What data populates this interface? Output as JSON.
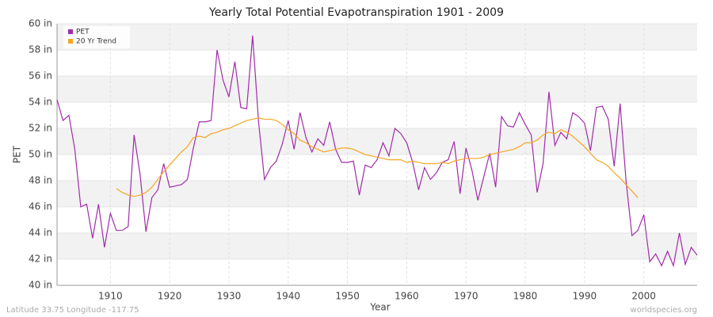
{
  "chart_data": {
    "type": "line",
    "title": "Yearly Total Potential Evapotranspiration 1901 - 2009",
    "xlabel": "Year",
    "ylabel": "PET",
    "footer_left": "Latitude 33.75 Longitude -117.75",
    "footer_right": "worldspecies.org",
    "x": [
      1901,
      1902,
      1903,
      1904,
      1905,
      1906,
      1907,
      1908,
      1909,
      1910,
      1911,
      1912,
      1913,
      1914,
      1915,
      1916,
      1917,
      1918,
      1919,
      1920,
      1921,
      1922,
      1923,
      1924,
      1925,
      1926,
      1927,
      1928,
      1929,
      1930,
      1931,
      1932,
      1933,
      1934,
      1935,
      1936,
      1937,
      1938,
      1939,
      1940,
      1941,
      1942,
      1943,
      1944,
      1945,
      1946,
      1947,
      1948,
      1949,
      1950,
      1951,
      1952,
      1953,
      1954,
      1955,
      1956,
      1957,
      1958,
      1959,
      1960,
      1961,
      1962,
      1963,
      1964,
      1965,
      1966,
      1967,
      1968,
      1969,
      1970,
      1971,
      1972,
      1973,
      1974,
      1975,
      1976,
      1977,
      1978,
      1979,
      1980,
      1981,
      1982,
      1983,
      1984,
      1985,
      1986,
      1987,
      1988,
      1989,
      1990,
      1991,
      1992,
      1993,
      1994,
      1995,
      1996,
      1997,
      1998,
      1999,
      2000,
      2001,
      2002,
      2003,
      2004,
      2005,
      2006,
      2007,
      2008,
      2009
    ],
    "series": [
      {
        "name": "PET",
        "color": "#a02ca8",
        "values": [
          54.2,
          52.6,
          53.0,
          50.4,
          46.0,
          46.2,
          43.6,
          46.2,
          42.9,
          45.5,
          44.2,
          44.2,
          44.5,
          51.5,
          48.5,
          44.1,
          46.7,
          47.3,
          49.3,
          47.5,
          47.6,
          47.7,
          48.1,
          50.5,
          52.5,
          52.5,
          52.6,
          58.0,
          55.7,
          54.4,
          57.1,
          53.6,
          53.5,
          59.1,
          52.5,
          48.1,
          49.0,
          49.5,
          50.8,
          52.6,
          50.4,
          53.2,
          51.3,
          50.2,
          51.2,
          50.7,
          52.5,
          50.4,
          49.4,
          49.4,
          49.5,
          46.9,
          49.2,
          49.0,
          49.6,
          50.9,
          49.9,
          52.0,
          51.6,
          50.9,
          49.4,
          47.3,
          49.0,
          48.1,
          48.6,
          49.4,
          49.6,
          51.0,
          47.0,
          50.5,
          48.8,
          46.5,
          48.3,
          50.1,
          47.5,
          52.9,
          52.2,
          52.1,
          53.2,
          52.3,
          51.5,
          47.1,
          49.3,
          54.8,
          50.7,
          51.7,
          51.2,
          53.2,
          52.9,
          52.4,
          50.3,
          53.6,
          53.7,
          52.7,
          49.1,
          53.9,
          48.0,
          43.8,
          44.2,
          45.4,
          41.8,
          42.4,
          41.5,
          42.6,
          41.5,
          44.0,
          41.6,
          42.9,
          42.3
        ]
      },
      {
        "name": "20 Yr Trend",
        "color": "#f5a623",
        "values": [
          null,
          null,
          null,
          null,
          null,
          null,
          null,
          null,
          null,
          null,
          47.4,
          47.1,
          46.9,
          46.8,
          46.9,
          47.1,
          47.5,
          48.1,
          48.7,
          49.2,
          49.7,
          50.2,
          50.6,
          51.3,
          51.4,
          51.3,
          51.6,
          51.7,
          51.9,
          52.0,
          52.2,
          52.4,
          52.6,
          52.7,
          52.8,
          52.7,
          52.7,
          52.6,
          52.3,
          51.9,
          51.6,
          51.1,
          50.9,
          50.6,
          50.4,
          50.2,
          50.3,
          50.4,
          50.5,
          50.5,
          50.4,
          50.2,
          50.0,
          49.9,
          49.8,
          49.7,
          49.6,
          49.6,
          49.6,
          49.4,
          49.5,
          49.4,
          49.3,
          49.3,
          49.3,
          49.4,
          49.3,
          49.5,
          49.6,
          49.7,
          49.7,
          49.7,
          49.8,
          50.0,
          50.1,
          50.2,
          50.3,
          50.4,
          50.6,
          50.9,
          50.9,
          51.1,
          51.5,
          51.7,
          51.6,
          51.9,
          51.7,
          51.4,
          51.0,
          50.6,
          50.1,
          49.6,
          49.4,
          49.1,
          48.6,
          48.2,
          47.7,
          47.2,
          46.7,
          null,
          null,
          null,
          null,
          null,
          null,
          null,
          null,
          null,
          null
        ]
      }
    ],
    "xlim": [
      1901,
      2009
    ],
    "xticks": [
      1910,
      1920,
      1930,
      1940,
      1950,
      1960,
      1970,
      1980,
      1990,
      2000
    ],
    "ylim": [
      40,
      60
    ],
    "yticks": [
      {
        "value": 40,
        "label": "40 in"
      },
      {
        "value": 42,
        "label": "42 in"
      },
      {
        "value": 44,
        "label": "44 in"
      },
      {
        "value": 46,
        "label": "46 in"
      },
      {
        "value": 48,
        "label": "48 in"
      },
      {
        "value": 50,
        "label": "50 in"
      },
      {
        "value": 52,
        "label": "52 in"
      },
      {
        "value": 54,
        "label": "54 in"
      },
      {
        "value": 56,
        "label": "56 in"
      },
      {
        "value": 58,
        "label": "58 in"
      },
      {
        "value": 60,
        "label": "60 in"
      }
    ],
    "grid": true,
    "legend": "upper left"
  }
}
